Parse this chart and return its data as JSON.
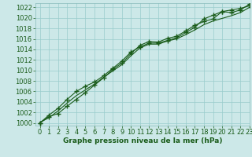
{
  "title": "Graphe pression niveau de la mer (hPa)",
  "bg_color": "#cce8e8",
  "grid_color": "#99cccc",
  "line_color": "#1a5c1a",
  "xlim": [
    -0.5,
    23
  ],
  "ylim": [
    999.5,
    1022.8
  ],
  "yticks": [
    1000,
    1002,
    1004,
    1006,
    1008,
    1010,
    1012,
    1014,
    1016,
    1018,
    1020,
    1022
  ],
  "xticks": [
    0,
    1,
    2,
    3,
    4,
    5,
    6,
    7,
    8,
    9,
    10,
    11,
    12,
    13,
    14,
    15,
    16,
    17,
    18,
    19,
    20,
    21,
    22,
    23
  ],
  "series1_x": [
    0,
    1,
    2,
    3,
    4,
    5,
    6,
    7,
    8,
    9,
    10,
    11,
    12,
    13,
    14,
    15,
    16,
    17,
    18,
    19,
    20,
    21,
    22,
    23
  ],
  "series1_y": [
    1000.0,
    1001.2,
    1001.8,
    1003.2,
    1004.5,
    1005.8,
    1007.2,
    1008.6,
    1010.2,
    1011.4,
    1013.2,
    1014.8,
    1015.5,
    1015.4,
    1016.1,
    1016.5,
    1017.5,
    1018.6,
    1019.3,
    1019.8,
    1021.2,
    1021.5,
    1021.8,
    1022.3
  ],
  "series2_x": [
    0,
    1,
    2,
    3,
    4,
    5,
    6,
    7,
    8,
    9,
    10,
    11,
    12,
    13,
    14,
    15,
    16,
    17,
    18,
    19,
    20,
    21,
    22,
    23
  ],
  "series2_y": [
    1000.1,
    1001.0,
    1002.3,
    1003.8,
    1005.2,
    1006.3,
    1007.4,
    1008.7,
    1009.9,
    1011.1,
    1012.8,
    1014.3,
    1015.0,
    1015.0,
    1015.6,
    1016.0,
    1016.8,
    1017.7,
    1018.7,
    1019.4,
    1019.9,
    1020.4,
    1021.0,
    1022.0
  ],
  "series3_x": [
    0,
    1,
    2,
    3,
    4,
    5,
    6,
    7,
    8,
    9,
    10,
    11,
    12,
    13,
    14,
    15,
    16,
    17,
    18,
    19,
    20,
    21,
    22,
    23
  ],
  "series3_y": [
    1000.0,
    1001.5,
    1002.8,
    1004.5,
    1006.0,
    1007.0,
    1007.8,
    1009.0,
    1010.4,
    1011.8,
    1013.5,
    1014.5,
    1015.2,
    1015.2,
    1015.7,
    1016.2,
    1017.2,
    1018.2,
    1019.8,
    1020.5,
    1021.2,
    1021.0,
    1021.5,
    1022.6
  ],
  "tick_fontsize": 6,
  "label_fontsize": 6.5,
  "title_fontweight": "bold"
}
